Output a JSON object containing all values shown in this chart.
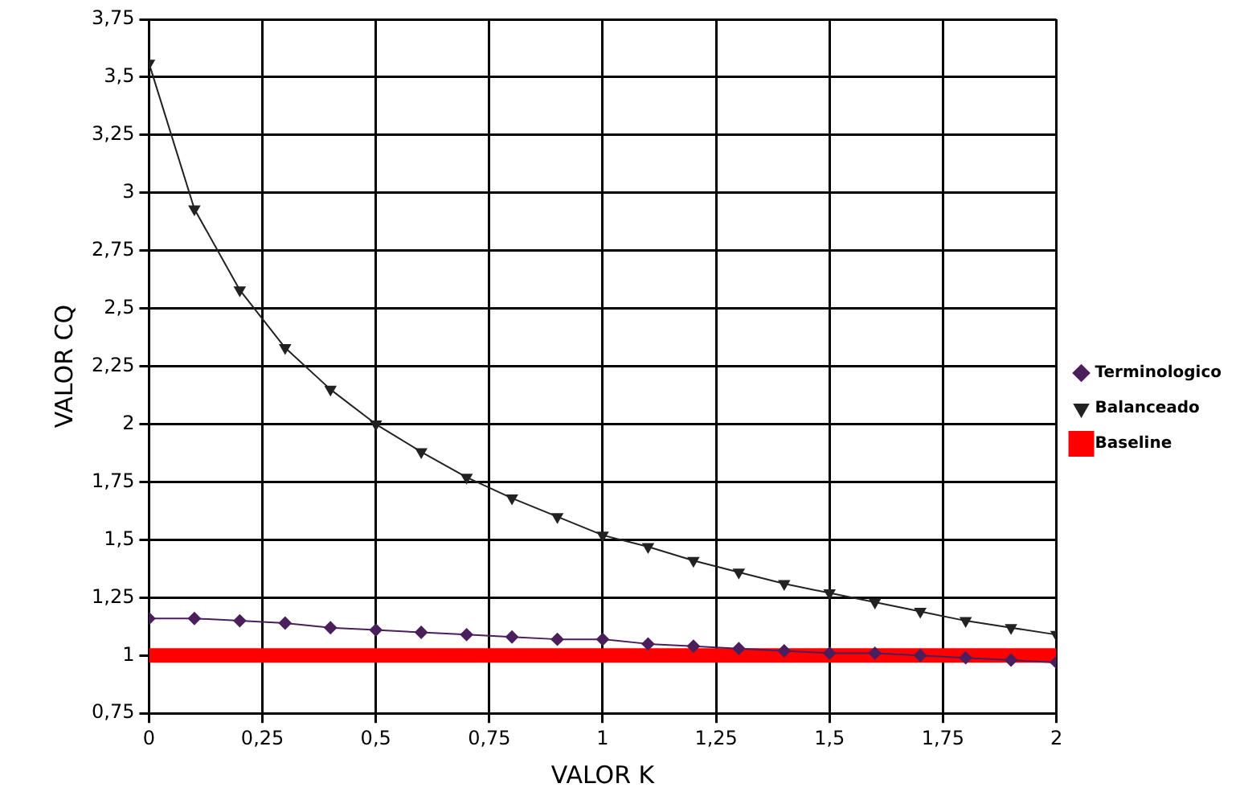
{
  "chart_data": {
    "type": "line",
    "xlabel": "VALOR K",
    "ylabel": "VALOR CQ",
    "x": [
      0,
      0.1,
      0.2,
      0.3,
      0.4,
      0.5,
      0.6,
      0.7,
      0.8,
      0.9,
      1,
      1.1,
      1.2,
      1.3,
      1.4,
      1.5,
      1.6,
      1.7,
      1.8,
      1.9,
      2
    ],
    "series": [
      {
        "name": "Terminologico",
        "color": "#4b1f5c",
        "marker": "diamond",
        "values": [
          1.16,
          1.16,
          1.15,
          1.14,
          1.12,
          1.11,
          1.1,
          1.09,
          1.08,
          1.07,
          1.07,
          1.05,
          1.04,
          1.03,
          1.02,
          1.01,
          1.01,
          1.0,
          0.99,
          0.98,
          0.97
        ]
      },
      {
        "name": "Balanceado",
        "color": "#222222",
        "marker": "triangle",
        "values": [
          3.56,
          2.93,
          2.58,
          2.33,
          2.15,
          2.0,
          1.88,
          1.77,
          1.68,
          1.6,
          1.52,
          1.47,
          1.41,
          1.36,
          1.31,
          1.27,
          1.23,
          1.19,
          1.15,
          1.12,
          1.09
        ]
      },
      {
        "name": "Baseline",
        "color": "#ff0000",
        "marker": "none",
        "values": [
          1,
          1,
          1,
          1,
          1,
          1,
          1,
          1,
          1,
          1,
          1,
          1,
          1,
          1,
          1,
          1,
          1,
          1,
          1,
          1,
          1
        ]
      }
    ],
    "xlim": [
      0,
      2
    ],
    "xticks": [
      {
        "value": 0,
        "label": "0"
      },
      {
        "value": 0.25,
        "label": "0,25"
      },
      {
        "value": 0.5,
        "label": "0,5"
      },
      {
        "value": 0.75,
        "label": "0,75"
      },
      {
        "value": 1,
        "label": "1"
      },
      {
        "value": 1.25,
        "label": "1,25"
      },
      {
        "value": 1.5,
        "label": "1,5"
      },
      {
        "value": 1.75,
        "label": "1,75"
      },
      {
        "value": 2,
        "label": "2"
      }
    ],
    "ylim": [
      0.75,
      3.75
    ],
    "yticks": [
      {
        "value": 0.75,
        "label": "0,75"
      },
      {
        "value": 1,
        "label": "1"
      },
      {
        "value": 1.25,
        "label": "1,25"
      },
      {
        "value": 1.5,
        "label": "1,5"
      },
      {
        "value": 1.75,
        "label": "1,75"
      },
      {
        "value": 2,
        "label": "2"
      },
      {
        "value": 2.25,
        "label": "2,25"
      },
      {
        "value": 2.5,
        "label": "2,5"
      },
      {
        "value": 2.75,
        "label": "2,75"
      },
      {
        "value": 3,
        "label": "3"
      },
      {
        "value": 3.25,
        "label": "3,25"
      },
      {
        "value": 3.5,
        "label": "3,5"
      },
      {
        "value": 3.75,
        "label": "3,75"
      }
    ],
    "grid": true,
    "legend": "right",
    "line_style": "solid"
  }
}
